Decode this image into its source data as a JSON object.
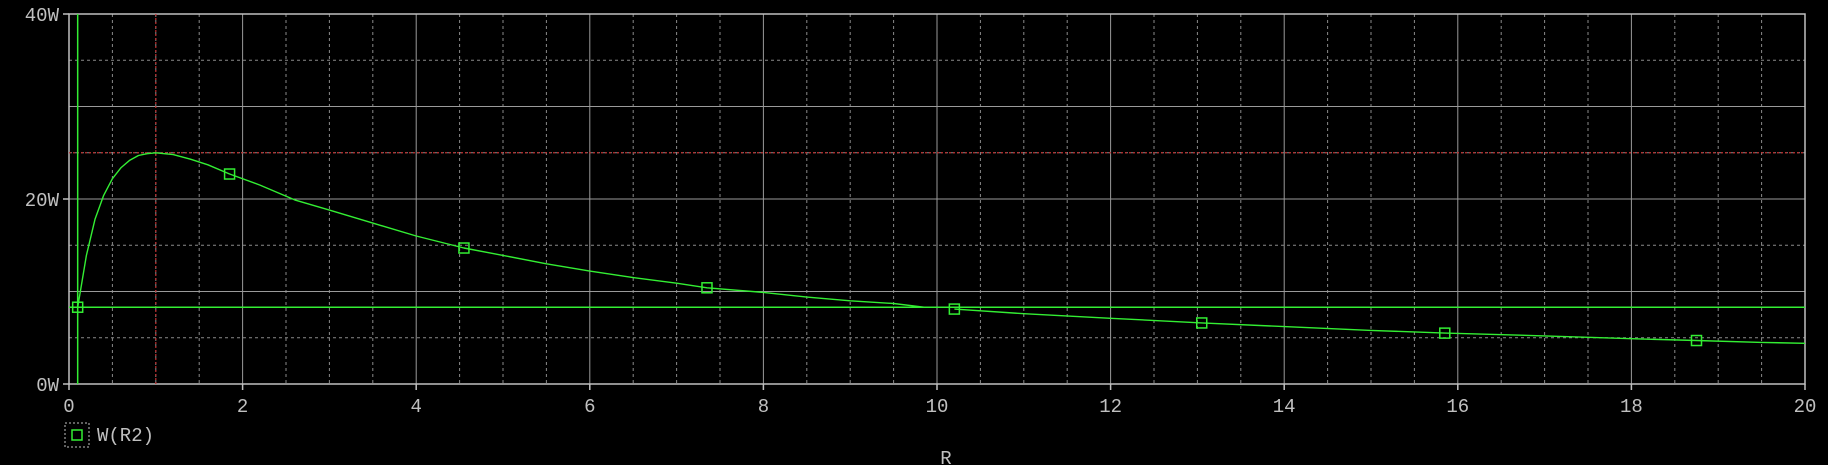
{
  "chart_data": {
    "type": "line",
    "title": "",
    "xlabel": "R",
    "ylabel": "",
    "xlim": [
      0,
      20
    ],
    "ylim": [
      0,
      40
    ],
    "x_ticks": [
      {
        "v": 0,
        "label": "0"
      },
      {
        "v": 2,
        "label": "2"
      },
      {
        "v": 4,
        "label": "4"
      },
      {
        "v": 6,
        "label": "6"
      },
      {
        "v": 8,
        "label": "8"
      },
      {
        "v": 10,
        "label": "10"
      },
      {
        "v": 12,
        "label": "12"
      },
      {
        "v": 14,
        "label": "14"
      },
      {
        "v": 16,
        "label": "16"
      },
      {
        "v": 18,
        "label": "18"
      },
      {
        "v": 20,
        "label": "20"
      }
    ],
    "y_ticks": [
      {
        "v": 0,
        "label": "0W"
      },
      {
        "v": 20,
        "label": "20W"
      },
      {
        "v": 40,
        "label": "40W"
      }
    ],
    "grid": true,
    "legend_position": "bottom-left",
    "series": [
      {
        "name": "W(R2)",
        "color": "#33ee33",
        "x": [
          0.1,
          0.2,
          0.3,
          0.4,
          0.5,
          0.6,
          0.7,
          0.8,
          0.9,
          1.0,
          1.2,
          1.4,
          1.6,
          1.85,
          2.2,
          2.6,
          3.0,
          3.5,
          4.0,
          4.55,
          5.0,
          5.5,
          6.0,
          6.5,
          7.0,
          7.35,
          8.0,
          8.5,
          9.0,
          9.5,
          9.85,
          10.2,
          11.0,
          12.0,
          13.05,
          14.0,
          15.0,
          15.85,
          17.0,
          18.0,
          18.75,
          19.5,
          20.0
        ],
        "y": [
          8.3,
          13.9,
          17.8,
          20.4,
          22.2,
          23.4,
          24.2,
          24.7,
          24.9,
          25.0,
          24.8,
          24.3,
          23.7,
          22.7,
          21.5,
          19.9,
          18.8,
          17.4,
          16.0,
          14.7,
          13.9,
          13.0,
          12.2,
          11.5,
          10.9,
          10.4,
          9.9,
          9.4,
          9.0,
          8.7,
          8.3,
          8.1,
          7.6,
          7.1,
          6.6,
          6.2,
          5.8,
          5.5,
          5.2,
          4.9,
          4.7,
          4.5,
          4.4
        ],
        "markers_x": [
          0.1,
          1.85,
          4.55,
          7.35,
          10.2,
          13.05,
          15.85,
          18.75
        ]
      }
    ],
    "cursors": {
      "color_h": "#c03030",
      "color_v": "#c03030",
      "x": 1.0,
      "y": 25.0,
      "color_alt": "#33ee33",
      "x_alt": 0.1,
      "y_alt": 8.3
    },
    "gap_x": [
      9.85,
      10.1
    ]
  }
}
